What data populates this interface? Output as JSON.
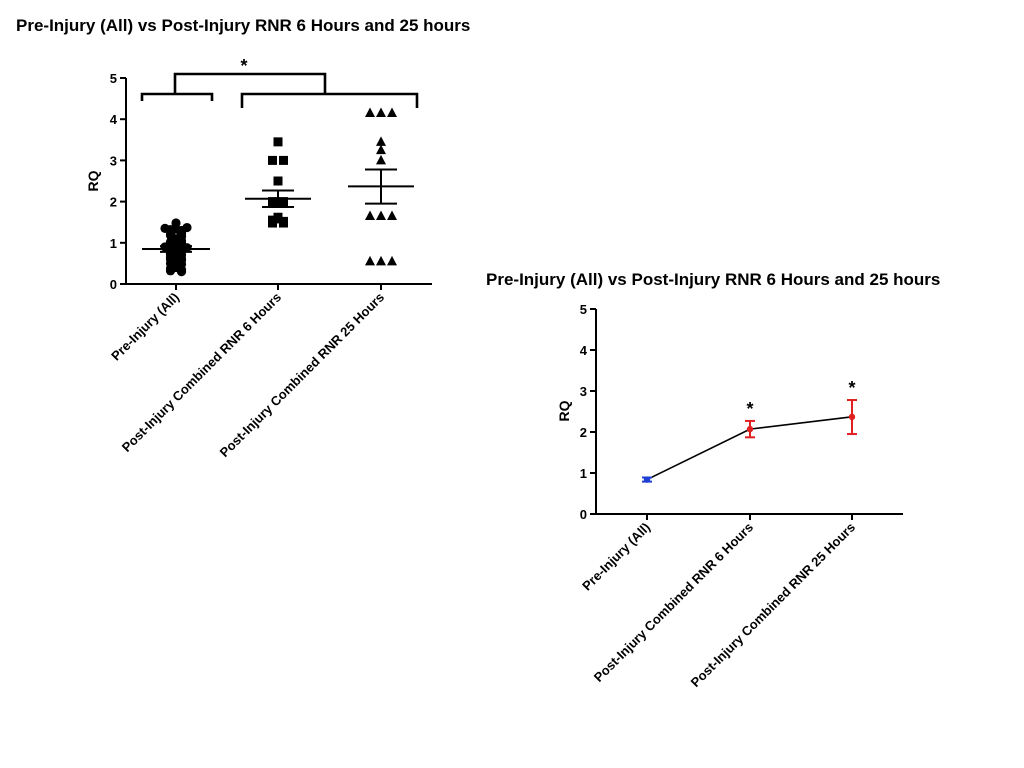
{
  "colors": {
    "pre_injury_line": "#1f3fd6",
    "post_injury_error": "#e02020",
    "axis": "#000000"
  },
  "chart_data": [
    {
      "type": "scatter",
      "title": "Pre-Injury (All) vs Post-Injury RNR 6 Hours and 25 hours",
      "ylabel": "RQ",
      "xlabel": "",
      "ylim": [
        0,
        5
      ],
      "yticks": [
        "0",
        "1",
        "2",
        "3",
        "4",
        "5"
      ],
      "categories": [
        "Pre-Injury (All)",
        "Post-Injury Combined RNR 6 Hours",
        "Post-Injury Combined RNR 25 Hours"
      ],
      "markers": [
        "circle",
        "square",
        "triangle"
      ],
      "series": [
        {
          "values": [
            1.32,
            1.28,
            1.35,
            1.3,
            1.33,
            1.37,
            1.48,
            1.2,
            1.22,
            1.25,
            1.18,
            1.15,
            1.1,
            1.0,
            1.02,
            0.98,
            0.95,
            0.9,
            0.92,
            0.85,
            0.88,
            0.82,
            0.8,
            0.75,
            0.72,
            0.7,
            0.68,
            0.65,
            0.62,
            0.6,
            0.55,
            0.5,
            0.48,
            0.45,
            0.4,
            0.38,
            0.35,
            0.32,
            0.3,
            1.05,
            0.78,
            0.58
          ],
          "mean": 0.85,
          "sem_low": 0.78,
          "sem_high": 0.92
        },
        {
          "values": [
            3.45,
            3.0,
            3.0,
            2.5,
            2.0,
            2.0,
            1.62,
            1.58,
            1.55,
            1.52,
            1.48,
            1.48
          ],
          "mean": 2.07,
          "sem_low": 1.87,
          "sem_high": 2.27
        },
        {
          "values": [
            4.15,
            4.15,
            4.15,
            3.45,
            3.25,
            3.0,
            1.65,
            1.65,
            1.65,
            0.55,
            0.55,
            0.55
          ],
          "mean": 2.37,
          "sem_low": 1.95,
          "sem_high": 2.78
        }
      ],
      "annotations": [
        {
          "text": "*",
          "between": "group 1 vs groups 2–3"
        }
      ]
    },
    {
      "type": "line",
      "title": "Pre-Injury (All) vs Post-Injury RNR 6 Hours and 25 hours",
      "ylabel": "RQ",
      "xlabel": "",
      "ylim": [
        0,
        5
      ],
      "yticks": [
        "0",
        "1",
        "2",
        "3",
        "4",
        "5"
      ],
      "categories": [
        "Pre-Injury (All)",
        "Post-Injury Combined RNR 6 Hours",
        "Post-Injury Combined RNR 25 Hours"
      ],
      "series": [
        {
          "values": [
            0.84,
            2.07,
            2.37
          ],
          "error_low": [
            0.79,
            1.87,
            1.95
          ],
          "error_high": [
            0.89,
            2.27,
            2.78
          ]
        }
      ],
      "annotations": [
        {
          "text": "*",
          "category": "Post-Injury Combined RNR 6 Hours"
        },
        {
          "text": "*",
          "category": "Post-Injury Combined RNR 25 Hours"
        }
      ]
    }
  ]
}
